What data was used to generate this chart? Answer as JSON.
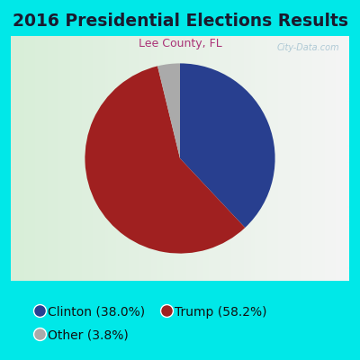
{
  "title": "2016 Presidential Elections Results",
  "subtitle": "Lee County, FL",
  "slices": [
    38.0,
    58.2,
    3.8
  ],
  "labels": [
    "Clinton (38.0%)",
    "Trump (58.2%)",
    "Other (3.8%)"
  ],
  "colors": [
    "#283f8f",
    "#a02020",
    "#aaaaaa"
  ],
  "startangle": 90,
  "counterclock": false,
  "outer_bg_color": "#00e8e8",
  "chart_bg_left": "#d8eed8",
  "chart_bg_right": "#f5f5f5",
  "title_color": "#1a1a2e",
  "subtitle_color": "#aa3377",
  "title_fontsize": 13.5,
  "subtitle_fontsize": 9,
  "legend_fontsize": 10,
  "watermark": "City-Data.com",
  "legend_labels_col1": [
    "Clinton (38.0%)",
    "Trump (58.2%)"
  ],
  "legend_labels_col2": [
    "Other (3.8%)"
  ],
  "legend_colors_col1": [
    "#283f8f",
    "#a02020"
  ],
  "legend_colors_col2": [
    "#aaaaaa"
  ]
}
